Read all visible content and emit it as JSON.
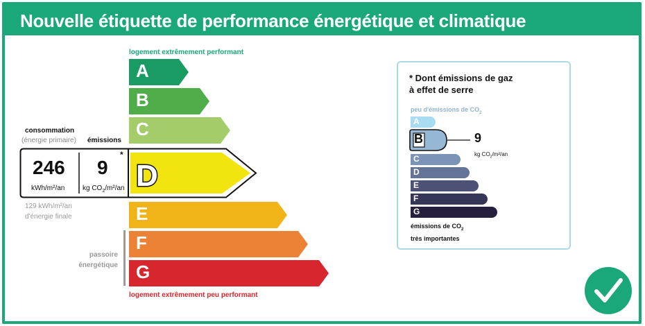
{
  "header": {
    "title": "Nouvelle étiquette de performance énergétique et climatique"
  },
  "energy": {
    "top_note": "logement extrêmement performant",
    "bottom_note": "logement extrêmement peu performant",
    "classes": [
      {
        "letter": "A",
        "color": "#1a9b63"
      },
      {
        "letter": "B",
        "color": "#4fae4a"
      },
      {
        "letter": "C",
        "color": "#a5cc6b"
      },
      {
        "letter": "D",
        "color": "#f2e40f"
      },
      {
        "letter": "E",
        "color": "#f0b418"
      },
      {
        "letter": "F",
        "color": "#ec8235"
      },
      {
        "letter": "G",
        "color": "#d7262d"
      }
    ],
    "current_class": "D",
    "consumption": {
      "label": "consommation",
      "sublabel": "(énergie primaire)",
      "value": "246",
      "unit": "kWh/m²/an"
    },
    "emissions": {
      "label": "émissions",
      "value": "9",
      "unit_prefix": "kg CO",
      "unit_sub": "2",
      "unit_suffix": "/m²/an",
      "asterisk": "*"
    },
    "final_energy": {
      "line1": "129 kWh/m²/an",
      "line2": "d'énergie finale"
    },
    "passoire": {
      "line1": "passoire",
      "line2": "énergétique"
    }
  },
  "ges": {
    "title_line1": "* Dont émissions de gaz",
    "title_line2": "à effet de serre",
    "low_note_prefix": "peu d'émissions de CO",
    "low_note_sub": "2",
    "high_note_line1_prefix": "émissions de CO",
    "high_note_line1_sub": "2",
    "high_note_line2": "très importantes",
    "classes": [
      {
        "letter": "A",
        "color": "#a8dcf2"
      },
      {
        "letter": "B",
        "color": "#97b8d5"
      },
      {
        "letter": "C",
        "color": "#7b93b7"
      },
      {
        "letter": "D",
        "color": "#647398"
      },
      {
        "letter": "E",
        "color": "#4b5276"
      },
      {
        "letter": "F",
        "color": "#363756"
      },
      {
        "letter": "G",
        "color": "#261f3d"
      }
    ],
    "current_class": "B",
    "value": "9",
    "unit_prefix": "kg CO",
    "unit_sub": "2",
    "unit_suffix": "/m²/an"
  },
  "badge": {
    "icon": "check-icon",
    "color": "#1aa87b"
  }
}
